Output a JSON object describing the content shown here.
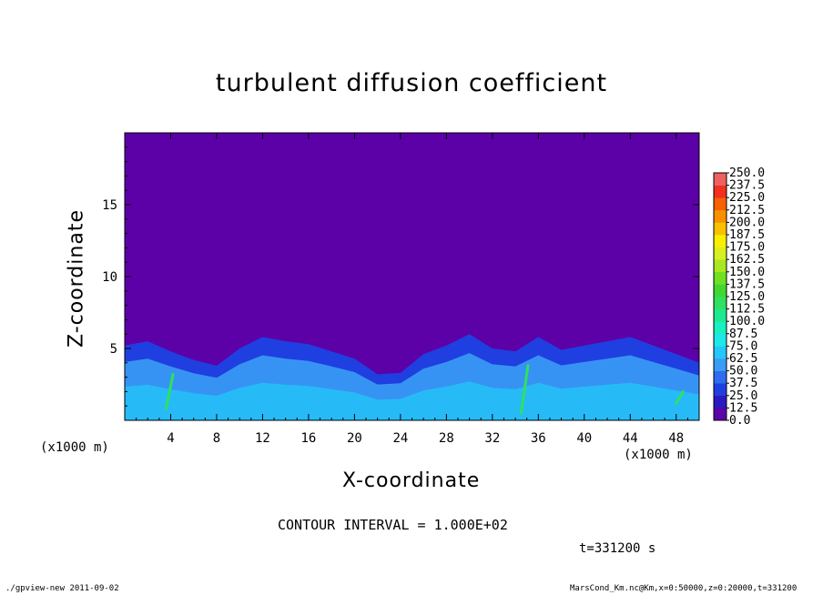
{
  "chart_data": {
    "type": "heatmap",
    "title": "turbulent diffusion coefficient",
    "xlabel": "X-coordinate",
    "ylabel": "Z-coordinate",
    "x_unit": "(x1000 m)",
    "xlim": [
      0,
      50
    ],
    "ylim": [
      0,
      20
    ],
    "x_ticks": [
      4,
      8,
      12,
      16,
      20,
      24,
      28,
      32,
      36,
      40,
      44,
      48
    ],
    "y_ticks": [
      5,
      10,
      15
    ],
    "colorbar": {
      "levels": [
        "0.0",
        "12.5",
        "25.0",
        "37.5",
        "50.0",
        "62.5",
        "75.0",
        "87.5",
        "100.0",
        "112.5",
        "125.0",
        "137.5",
        "150.0",
        "162.5",
        "175.0",
        "187.5",
        "200.0",
        "212.5",
        "225.0",
        "237.5",
        "250.0"
      ],
      "colors": [
        "#5c00a8",
        "#2a18c0",
        "#1f3fe0",
        "#2e6cf0",
        "#3a9cf5",
        "#22c8f8",
        "#1ee8e8",
        "#18f0c0",
        "#20e890",
        "#30e060",
        "#40d830",
        "#70e020",
        "#a8e820",
        "#d8f020",
        "#f8f000",
        "#f8c000",
        "#f89000",
        "#f86000",
        "#f03020",
        "#f06060"
      ],
      "band_range": [
        0,
        250
      ]
    },
    "series": [
      {
        "x": [
          0,
          2,
          4,
          6,
          8,
          10,
          12,
          14,
          16,
          18,
          20,
          22,
          24,
          26,
          28,
          30,
          32,
          34,
          36,
          38,
          40,
          42,
          44,
          46,
          48,
          50
        ],
        "values": [
          5.2,
          5.5,
          4.8,
          4.2,
          3.8,
          5.0,
          5.8,
          5.5,
          5.3,
          4.8,
          4.3,
          3.2,
          3.3,
          4.6,
          5.2,
          6.0,
          5.0,
          4.8,
          5.8,
          4.9,
          5.2,
          5.5,
          5.8,
          5.2,
          4.6,
          4.0
        ]
      }
    ]
  },
  "text": {
    "title": "turbulent diffusion coefficient",
    "xlabel": "X-coordinate",
    "ylabel": "Z-coordinate",
    "xunit_left": "(x1000 m)",
    "xunit_right": "(x1000 m)",
    "contour": "CONTOUR INTERVAL = 1.000E+02",
    "time": "t=331200 s",
    "footer_left": "./gpview-new  2011-09-02",
    "footer_right": "MarsCond_Km.nc@Km,x=0:50000,z=0:20000,t=331200"
  }
}
